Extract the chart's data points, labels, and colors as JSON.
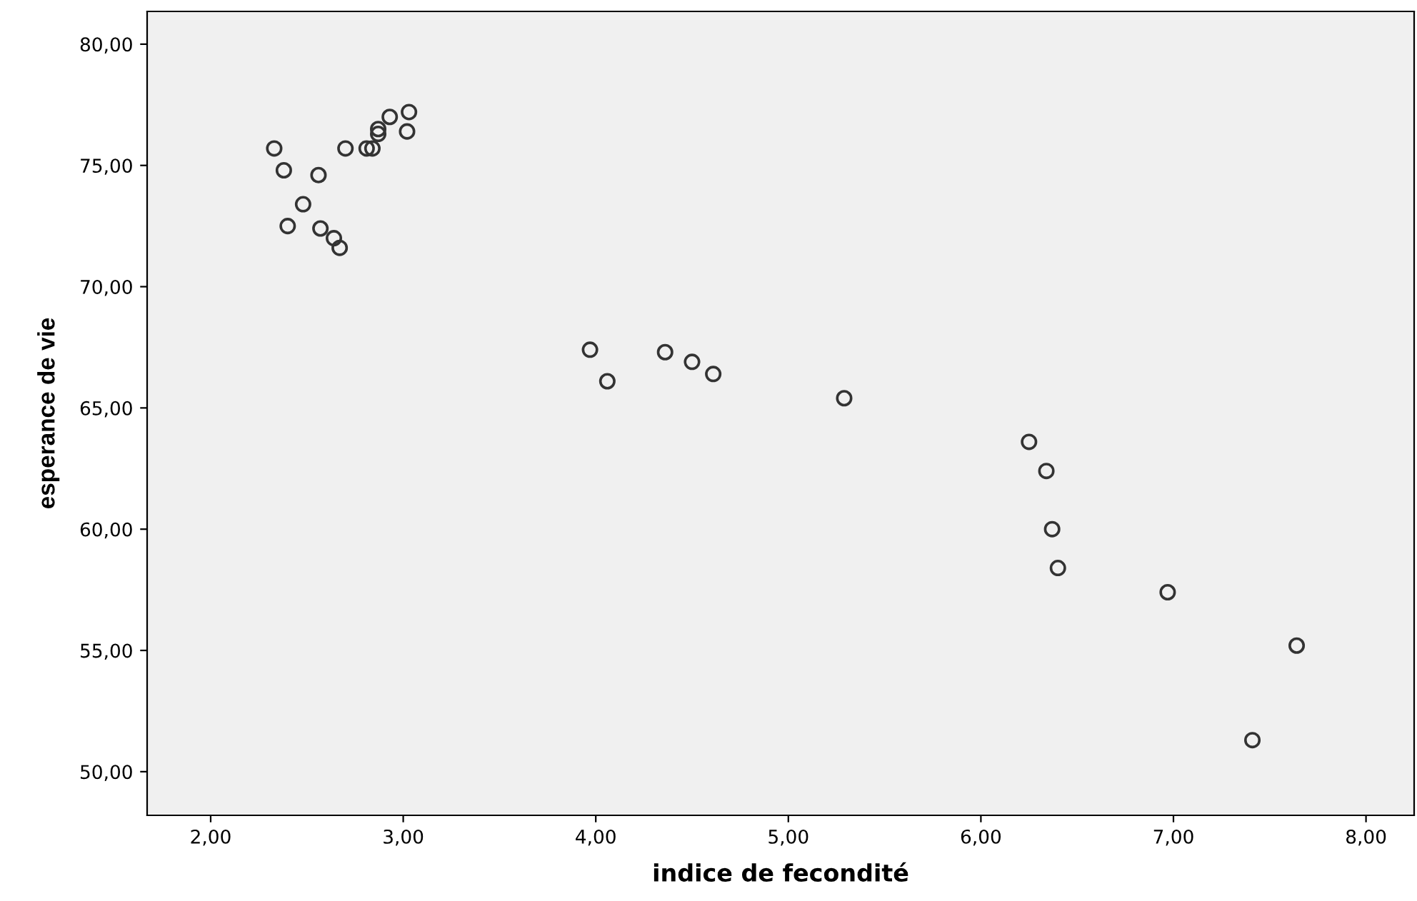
{
  "chart_data": {
    "type": "scatter",
    "xlabel": "indice de fecondité",
    "ylabel": "esperance de vie",
    "x": [
      2.33,
      2.38,
      2.56,
      2.48,
      2.4,
      2.57,
      2.64,
      2.67,
      2.7,
      2.81,
      2.84,
      2.87,
      2.87,
      2.93,
      3.03,
      3.02,
      3.97,
      4.06,
      4.36,
      4.5,
      4.61,
      5.29,
      6.25,
      6.34,
      6.37,
      6.4,
      6.97,
      7.64,
      7.41
    ],
    "values": [
      75.7,
      74.8,
      74.6,
      73.4,
      72.5,
      72.4,
      72.0,
      71.6,
      75.7,
      75.7,
      75.7,
      76.5,
      76.3,
      77.0,
      77.2,
      76.4,
      67.4,
      66.1,
      67.3,
      66.9,
      66.4,
      65.4,
      63.6,
      62.4,
      60.0,
      58.4,
      57.4,
      55.2,
      51.3
    ],
    "color": "#333333",
    "marker": "circle",
    "xlim": [
      1.67,
      8.25
    ],
    "ylim": [
      48.2,
      81.35
    ],
    "xticks": [
      {
        "value": 2,
        "label": "2,00"
      },
      {
        "value": 3,
        "label": "3,00"
      },
      {
        "value": 4,
        "label": "4,00"
      },
      {
        "value": 5,
        "label": "5,00"
      },
      {
        "value": 6,
        "label": "6,00"
      },
      {
        "value": 7,
        "label": "7,00"
      },
      {
        "value": 8,
        "label": "8,00"
      }
    ],
    "yticks": [
      {
        "value": 50,
        "label": "50,00"
      },
      {
        "value": 55,
        "label": "55,00"
      },
      {
        "value": 60,
        "label": "60,00"
      },
      {
        "value": 65,
        "label": "65,00"
      },
      {
        "value": 70,
        "label": "70,00"
      },
      {
        "value": 75,
        "label": "75,00"
      },
      {
        "value": 80,
        "label": "80,00"
      }
    ],
    "grid": false,
    "legend": false
  }
}
